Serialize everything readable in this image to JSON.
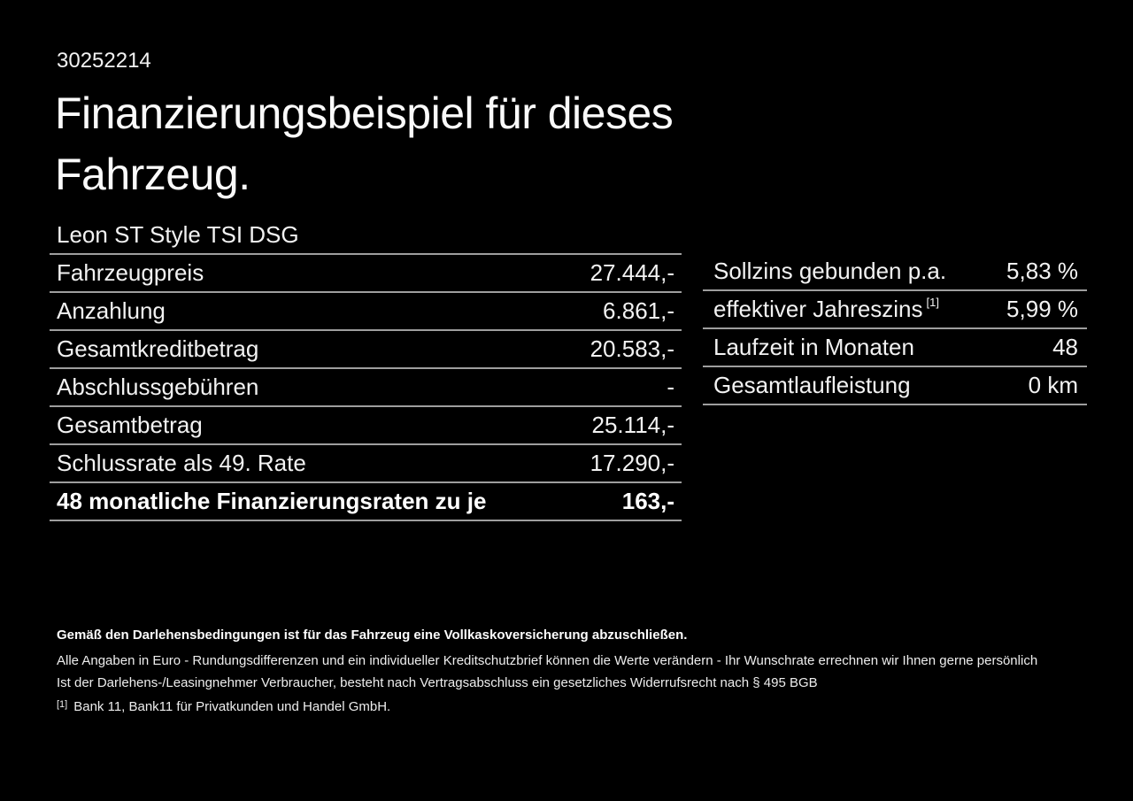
{
  "page": {
    "document_id": "30252214",
    "title_line1": "Finanzierungsbeispiel für dieses",
    "title_line2": "Fahrzeug.",
    "vehicle_name": "Leon ST Style TSI DSG"
  },
  "finance_table": {
    "rows": [
      {
        "label": "Fahrzeugpreis",
        "value": "27.444,-"
      },
      {
        "label": "Anzahlung",
        "value": "6.861,-"
      },
      {
        "label": "Gesamtkreditbetrag",
        "value": "20.583,-"
      },
      {
        "label": "Abschlussgebühren",
        "value": "-"
      },
      {
        "label": "Gesamtbetrag",
        "value": "25.114,-"
      },
      {
        "label": "Schlussrate als 49. Rate",
        "value": "17.290,-"
      },
      {
        "label": "48 monatliche Finanzierungsraten zu je",
        "value": "163,-"
      }
    ]
  },
  "conditions_table": {
    "rows": [
      {
        "label": "Sollzins gebunden p.a.",
        "value": "5,83 %"
      },
      {
        "label": "effektiver Jahreszins",
        "superscript": "[1]",
        "value": "5,99 %"
      },
      {
        "label": "Laufzeit in Monaten",
        "value": "48"
      },
      {
        "label": "Gesamtlaufleistung",
        "value": "0 km"
      }
    ]
  },
  "footer": {
    "bold_note": "Gemäß den Darlehensbedingungen ist für das Fahrzeug eine Vollkaskoversicherung abzuschließen.",
    "note_line1": "Alle Angaben in Euro - Rundungsdifferenzen und ein individueller Kreditschutzbrief können die Werte verändern - Ihr Wunschrate errechnen wir Ihnen gerne persönlich",
    "note_line2": "Ist der Darlehens-/Leasingnehmer Verbraucher, besteht nach Vertragsabschluss ein gesetzliches Widerrufsrecht nach § 495 BGB",
    "footnote_marker": "[1]",
    "footnote_text": "Bank 11, Bank11 für Privatkunden und Handel GmbH."
  },
  "colors": {
    "background": "#000000",
    "text": "#f2f2f2",
    "divider": "#9e9e9e"
  }
}
